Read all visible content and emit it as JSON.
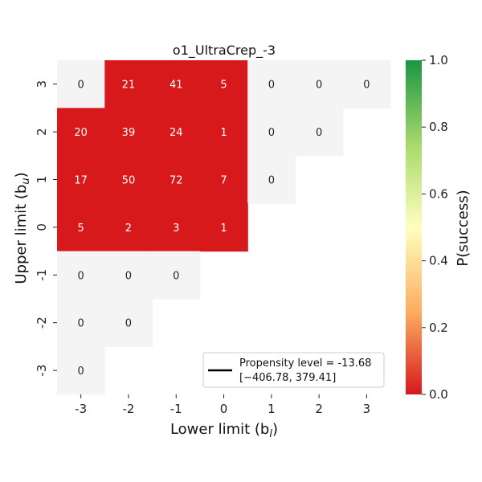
{
  "chart_data": {
    "type": "heatmap",
    "title": "o1_UltraCrep_-3",
    "xlabel": "Lower limit (b",
    "xlabel_sub": "l",
    "ylabel": "Upper limit (b",
    "ylabel_sub": "u",
    "x_categories": [
      "-3",
      "-2",
      "-1",
      "0",
      "1",
      "2",
      "3"
    ],
    "y_categories": [
      "3",
      "2",
      "1",
      "0",
      "-1",
      "-2",
      "-3"
    ],
    "cells": [
      {
        "x": "-3",
        "y": "3",
        "count": 0,
        "p_success": null
      },
      {
        "x": "-2",
        "y": "3",
        "count": 21,
        "p_success": 0.0
      },
      {
        "x": "-1",
        "y": "3",
        "count": 41,
        "p_success": 0.0
      },
      {
        "x": "0",
        "y": "3",
        "count": 5,
        "p_success": 0.0
      },
      {
        "x": "1",
        "y": "3",
        "count": 0,
        "p_success": null
      },
      {
        "x": "2",
        "y": "3",
        "count": 0,
        "p_success": null
      },
      {
        "x": "3",
        "y": "3",
        "count": 0,
        "p_success": null
      },
      {
        "x": "-3",
        "y": "2",
        "count": 20,
        "p_success": 0.0
      },
      {
        "x": "-2",
        "y": "2",
        "count": 39,
        "p_success": 0.0
      },
      {
        "x": "-1",
        "y": "2",
        "count": 24,
        "p_success": 0.0
      },
      {
        "x": "0",
        "y": "2",
        "count": 1,
        "p_success": 0.0
      },
      {
        "x": "1",
        "y": "2",
        "count": 0,
        "p_success": null
      },
      {
        "x": "2",
        "y": "2",
        "count": 0,
        "p_success": null
      },
      {
        "x": "-3",
        "y": "1",
        "count": 17,
        "p_success": 0.0
      },
      {
        "x": "-2",
        "y": "1",
        "count": 50,
        "p_success": 0.0
      },
      {
        "x": "-1",
        "y": "1",
        "count": 72,
        "p_success": 0.0
      },
      {
        "x": "0",
        "y": "1",
        "count": 7,
        "p_success": 0.0
      },
      {
        "x": "1",
        "y": "1",
        "count": 0,
        "p_success": null
      },
      {
        "x": "-3",
        "y": "0",
        "count": 5,
        "p_success": 0.0
      },
      {
        "x": "-2",
        "y": "0",
        "count": 2,
        "p_success": 0.0
      },
      {
        "x": "-1",
        "y": "0",
        "count": 3,
        "p_success": 0.0
      },
      {
        "x": "0",
        "y": "0",
        "count": 1,
        "p_success": 0.0
      },
      {
        "x": "-3",
        "y": "-1",
        "count": 0,
        "p_success": null
      },
      {
        "x": "-2",
        "y": "-1",
        "count": 0,
        "p_success": null
      },
      {
        "x": "-1",
        "y": "-1",
        "count": 0,
        "p_success": null
      },
      {
        "x": "-3",
        "y": "-2",
        "count": 0,
        "p_success": null
      },
      {
        "x": "-2",
        "y": "-2",
        "count": 0,
        "p_success": null
      },
      {
        "x": "-3",
        "y": "-3",
        "count": 0,
        "p_success": null
      }
    ],
    "colorbar": {
      "label": "P(success)",
      "range": [
        0.0,
        1.0
      ],
      "ticks": [
        "0.0",
        "0.2",
        "0.4",
        "0.6",
        "0.8",
        "1.0"
      ],
      "colors": [
        "#d7191c",
        "#fdae61",
        "#ffffbf",
        "#a6d96a",
        "#1a9641"
      ]
    },
    "empty_cell_color": "#f4f4f4",
    "low_cell_color": "#d7191c",
    "legend": {
      "line1": "Propensity level = -13.68",
      "line2": "[−406.78, 379.41]",
      "line_color": "#000000",
      "placement": "lower-right"
    }
  }
}
